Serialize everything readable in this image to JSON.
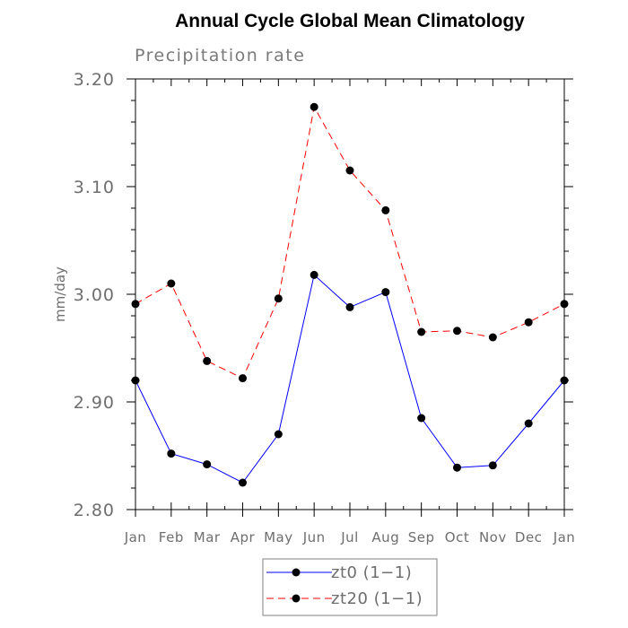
{
  "chart_data": {
    "type": "line",
    "title": "Annual Cycle Global Mean Climatology",
    "subtitle": "Precipitation rate",
    "xlabel": "",
    "ylabel": "mm/day",
    "categories": [
      "Jan",
      "Feb",
      "Mar",
      "Apr",
      "May",
      "Jun",
      "Jul",
      "Aug",
      "Sep",
      "Oct",
      "Nov",
      "Dec",
      "Jan"
    ],
    "ylim": [
      2.8,
      3.2
    ],
    "yticks": [
      "2.80",
      "2.90",
      "3.00",
      "3.10",
      "3.20"
    ],
    "grid": false,
    "legend_position": "bottom-center",
    "series": [
      {
        "name": "zt0 (1−1)",
        "color": "#0000ff",
        "dash": "solid",
        "values": [
          2.92,
          2.852,
          2.842,
          2.825,
          2.87,
          3.018,
          2.988,
          3.002,
          2.885,
          2.839,
          2.841,
          2.88,
          2.92
        ]
      },
      {
        "name": "zt20 (1−1)",
        "color": "#ff0000",
        "dash": "dashed",
        "values": [
          2.991,
          3.01,
          2.938,
          2.922,
          2.996,
          3.174,
          3.115,
          3.078,
          2.965,
          2.966,
          2.96,
          2.974,
          2.991
        ]
      }
    ]
  }
}
